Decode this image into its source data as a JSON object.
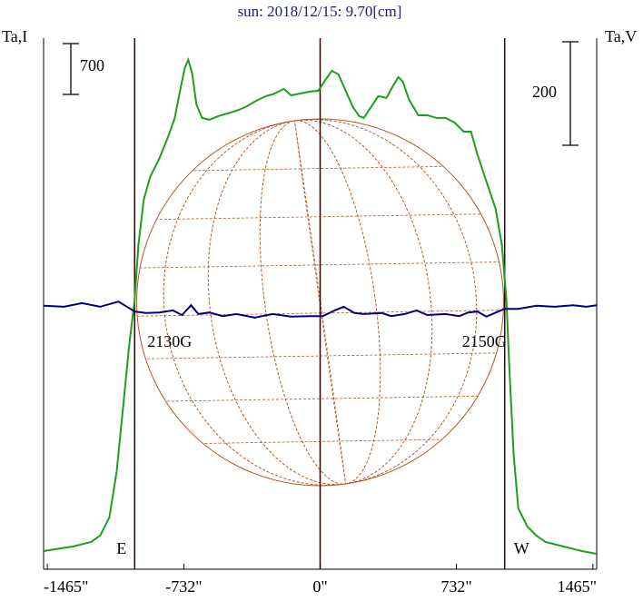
{
  "chart_data": {
    "type": "line",
    "title": "sun: 2018/12/15: 9.70[cm]",
    "ylabel": "Ta,I",
    "y2label": "Ta,V",
    "xlim": [
      -1485,
      1485
    ],
    "xticks": [
      {
        "value": -1465,
        "label": "-1465\""
      },
      {
        "value": -732,
        "label": "-732\""
      },
      {
        "value": 0,
        "label": "0\""
      },
      {
        "value": 732,
        "label": "732\""
      },
      {
        "value": 1465,
        "label": "1465\""
      }
    ],
    "ylim": [
      0,
      7312
    ],
    "y2lim": [
      -513,
      513
    ],
    "center_line_x": 0,
    "disk_radius": 985,
    "markers": [
      {
        "x": -996,
        "label": "E",
        "field_label": "2130G"
      },
      {
        "x": 991,
        "label": "W",
        "field_label": "2150G"
      }
    ],
    "scale_bars": [
      {
        "axis": "y",
        "value": 700
      },
      {
        "axis": "y2",
        "value": 200
      }
    ],
    "series": [
      {
        "color": "#1ca01c",
        "axis": "y",
        "x": [
          -1484,
          -1425,
          -1327,
          -1230,
          -1181,
          -1132,
          -1093,
          -1059,
          -1025,
          -996,
          -976,
          -947,
          -913,
          -864,
          -815,
          -781,
          -752,
          -727,
          -708,
          -688,
          -664,
          -634,
          -595,
          -547,
          -498,
          -449,
          -400,
          -351,
          -293,
          -254,
          -195,
          -156,
          -107,
          -59,
          -10,
          29,
          63,
          98,
          137,
          176,
          210,
          234,
          273,
          312,
          356,
          390,
          420,
          444,
          478,
          527,
          576,
          625,
          673,
          722,
          771,
          810,
          844,
          893,
          942,
          976,
          1000,
          1015,
          1039,
          1064,
          1113,
          1161,
          1210,
          1308,
          1405,
          1484
        ],
        "values": [
          250,
          275,
          313,
          375,
          463,
          713,
          1338,
          2213,
          3088,
          3713,
          4463,
          5088,
          5400,
          5650,
          5963,
          6213,
          6588,
          6900,
          7013,
          6838,
          6400,
          6213,
          6188,
          6238,
          6275,
          6313,
          6363,
          6438,
          6513,
          6538,
          6613,
          6525,
          6550,
          6575,
          6588,
          6738,
          6863,
          6813,
          6588,
          6363,
          6238,
          6213,
          6363,
          6513,
          6488,
          6650,
          6775,
          6713,
          6463,
          6250,
          6250,
          6213,
          6213,
          6150,
          6025,
          6025,
          5713,
          5338,
          4963,
          4463,
          3713,
          2838,
          1588,
          838,
          588,
          463,
          375,
          313,
          250,
          213
        ]
      },
      {
        "color": "#000080",
        "axis": "y2",
        "x": [
          -1484,
          -1376,
          -1279,
          -1181,
          -1083,
          -996,
          -937,
          -864,
          -791,
          -742,
          -693,
          -654,
          -595,
          -522,
          -449,
          -351,
          -254,
          -156,
          -59,
          15,
          78,
          127,
          185,
          234,
          332,
          381,
          454,
          517,
          576,
          673,
          747,
          795,
          844,
          893,
          957,
          991,
          1064,
          1161,
          1259,
          1357,
          1430,
          1484
        ],
        "values": [
          -4,
          -6,
          1,
          -6,
          4,
          -15,
          -18,
          -17,
          -13,
          -22,
          -3,
          -20,
          -17,
          -24,
          -20,
          -27,
          -20,
          -25,
          -24,
          -24,
          -13,
          -6,
          -18,
          -20,
          -18,
          -24,
          -20,
          -13,
          -22,
          -20,
          -24,
          -17,
          -15,
          -25,
          -15,
          -10,
          -10,
          -4,
          -6,
          -3,
          -6,
          -3
        ]
      }
    ]
  }
}
